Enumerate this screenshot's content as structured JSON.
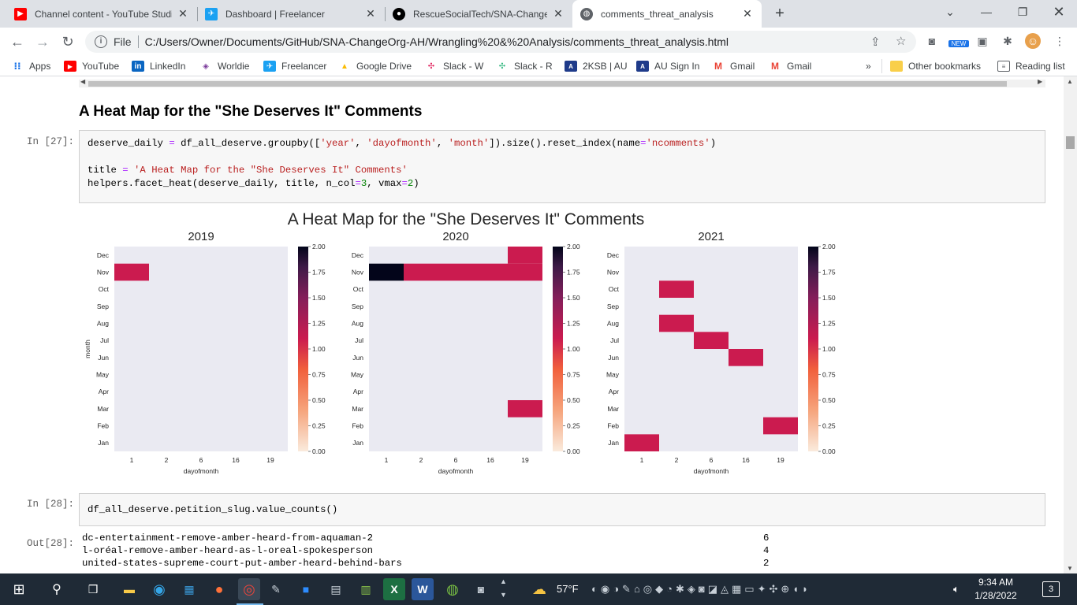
{
  "tabs": [
    {
      "title": "Channel content - YouTube Studi",
      "color": "#ff0000",
      "icon": "youtube-icon"
    },
    {
      "title": "Dashboard | Freelancer",
      "color": "#1ba1f2",
      "icon": "freelancer-icon"
    },
    {
      "title": "RescueSocialTech/SNA-ChangeO",
      "color": "#000000",
      "icon": "github-icon"
    },
    {
      "title": "comments_threat_analysis",
      "color": "#5f6368",
      "icon": "globe-icon"
    }
  ],
  "address": {
    "scheme_label": "File",
    "url": "C:/Users/Owner/Documents/GitHub/SNA-ChangeOrg-AH/Wrangling%20&%20Analysis/comments_threat_analysis.html"
  },
  "extensions": {
    "new_badge": "NEW"
  },
  "bookmarks": {
    "items": [
      "Apps",
      "YouTube",
      "LinkedIn",
      "Worldie",
      "Freelancer",
      "Google Drive",
      "Slack - W",
      "Slack - R",
      "2KSB | AU",
      "AU Sign In",
      "Gmail",
      "Gmail"
    ],
    "overflow": "»",
    "other": "Other bookmarks",
    "reading": "Reading list"
  },
  "notebook": {
    "heading": "A Heat Map for the \"She Deserves It\" Comments",
    "cell27": {
      "prompt": "In [27]:",
      "line1_a": "deserve_daily ",
      "line1_eq": "=",
      "line1_b": " df_all_deserve",
      "line1_c": ".groupby([",
      "line1_s1": "'year'",
      "line1_d": ", ",
      "line1_s2": "'dayofmonth'",
      "line1_e": ", ",
      "line1_s3": "'month'",
      "line1_f": "]).size().reset_index(name",
      "line1_eq2": "=",
      "line1_s4": "'ncomments'",
      "line1_g": ")",
      "line3_a": "title ",
      "line3_eq": "=",
      "line3_s": " 'A Heat Map for the \"She Deserves It\" Comments'",
      "line4_a": "helpers.facet_heat(deserve_daily, title, n_col",
      "line4_eq": "=",
      "line4_n1": "3",
      "line4_b": ", vmax",
      "line4_eq2": "=",
      "line4_n2": "2",
      "line4_c": ")"
    },
    "cell28": {
      "prompt": "In [28]:",
      "code": "df_all_deserve.petition_slug.value_counts()",
      "out_prompt": "Out[28]:",
      "rows": [
        {
          "slug": "dc-entertainment-remove-amber-heard-from-aquaman-2",
          "count": "6"
        },
        {
          "slug": "l-oréal-remove-amber-heard-as-l-oreal-spokesperson",
          "count": "4"
        },
        {
          "slug": "united-states-supreme-court-put-amber-heard-behind-bars",
          "count": "2"
        }
      ]
    }
  },
  "chart_data": {
    "type": "heatmap",
    "title": "A Heat Map for the \"She Deserves It\" Comments",
    "xlabel": "dayofmonth",
    "ylabel": "month",
    "x_ticks": [
      "1",
      "2",
      "6",
      "16",
      "19"
    ],
    "y_ticks": [
      "Dec",
      "Nov",
      "Oct",
      "Sep",
      "Aug",
      "Jul",
      "Jun",
      "May",
      "Apr",
      "Mar",
      "Feb",
      "Jan"
    ],
    "vmin": 0,
    "vmax": 2,
    "colorbar_ticks": [
      "2.00",
      "1.75",
      "1.50",
      "1.25",
      "1.00",
      "0.75",
      "0.50",
      "0.25",
      "0.00"
    ],
    "panels": [
      {
        "year": "2019",
        "cells": [
          {
            "day": "1",
            "month": "Nov",
            "value": 1
          }
        ]
      },
      {
        "year": "2020",
        "cells": [
          {
            "day": "1",
            "month": "Nov",
            "value": 2
          },
          {
            "day": "2",
            "month": "Nov",
            "value": 1
          },
          {
            "day": "6",
            "month": "Nov",
            "value": 1
          },
          {
            "day": "16",
            "month": "Nov",
            "value": 1
          },
          {
            "day": "19",
            "month": "Nov",
            "value": 1
          },
          {
            "day": "19",
            "month": "Dec",
            "value": 1
          },
          {
            "day": "19",
            "month": "Mar",
            "value": 1
          }
        ]
      },
      {
        "year": "2021",
        "cells": [
          {
            "day": "2",
            "month": "Oct",
            "value": 1
          },
          {
            "day": "2",
            "month": "Aug",
            "value": 1
          },
          {
            "day": "6",
            "month": "Jul",
            "value": 1
          },
          {
            "day": "16",
            "month": "Jun",
            "value": 1
          },
          {
            "day": "19",
            "month": "Feb",
            "value": 1
          },
          {
            "day": "1",
            "month": "Jan",
            "value": 1
          }
        ]
      }
    ],
    "colors": {
      "empty": "#eaeaf2",
      "one": "#cb1b4f",
      "two": "#03051a"
    }
  },
  "taskbar": {
    "weather": "57°F",
    "time": "9:34 AM",
    "date": "1/28/2022",
    "notif_count": "3"
  }
}
